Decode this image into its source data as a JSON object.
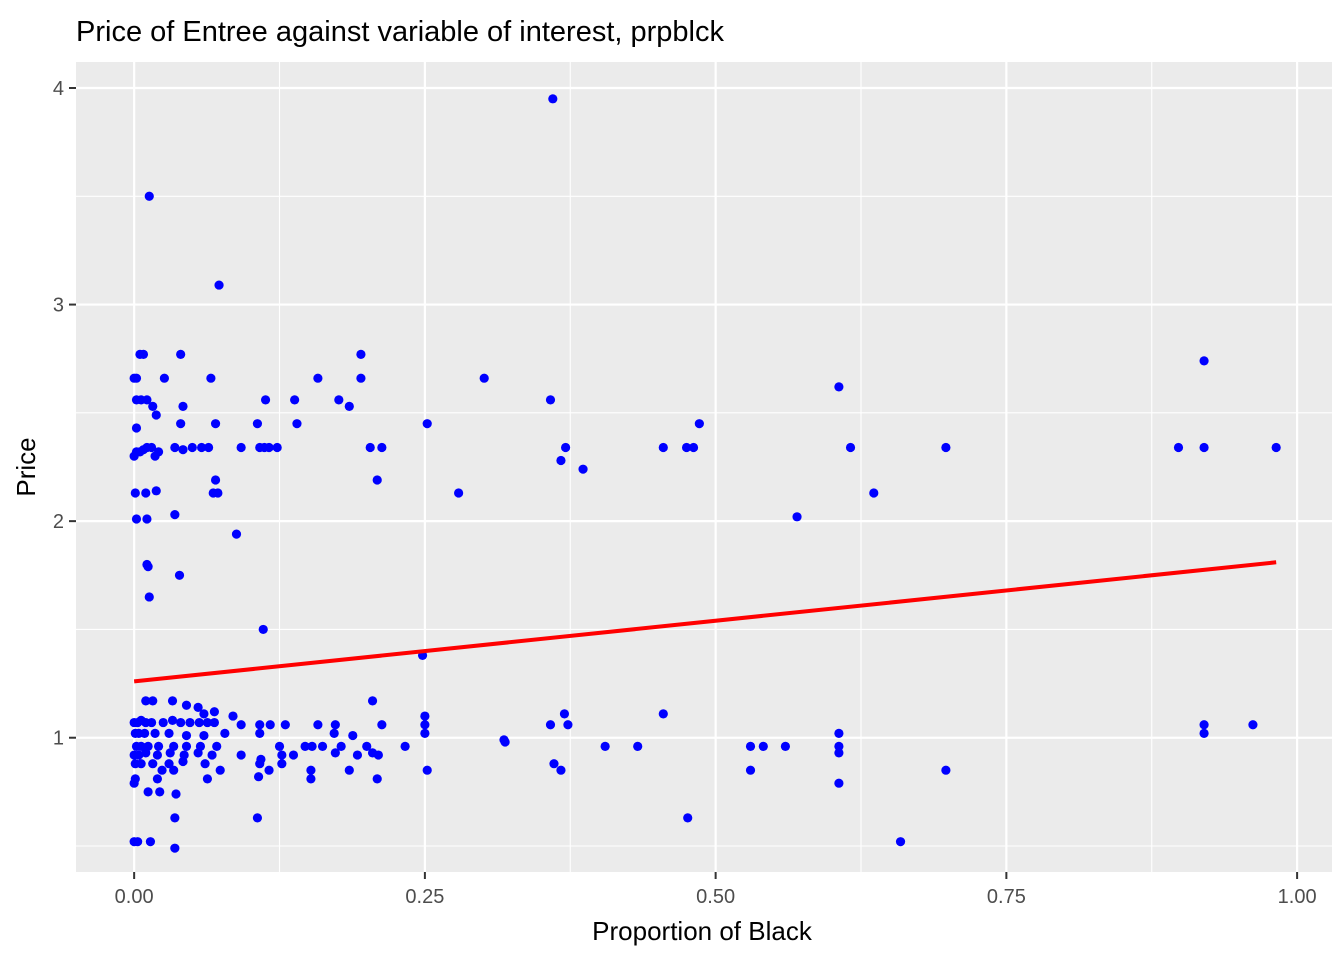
{
  "chart_data": {
    "type": "scatter",
    "title": "Price of Entree against variable of interest, prpblck",
    "xlabel": "Proportion of Black",
    "ylabel": "Price",
    "xlim": [
      -0.05,
      1.03
    ],
    "ylim": [
      0.38,
      4.12
    ],
    "x_ticks": [
      0,
      0.25,
      0.5,
      0.75,
      1.0
    ],
    "x_tick_labels": [
      "0.00",
      "0.25",
      "0.50",
      "0.75",
      "1.00"
    ],
    "y_ticks": [
      1,
      2,
      3,
      4
    ],
    "y_tick_labels": [
      "1",
      "2",
      "3",
      "4"
    ],
    "grid": true,
    "legend": "none",
    "colors": {
      "panel": "#ebebeb",
      "grid": "#ffffff",
      "points": "#0000ff",
      "fit_line": "#ff0000"
    },
    "series": [
      {
        "type": "scatter",
        "points": [
          [
            0.36,
            3.95
          ],
          [
            0.013,
            3.5
          ],
          [
            0.073,
            3.09
          ],
          [
            0.005,
            2.77
          ],
          [
            0.008,
            2.77
          ],
          [
            0.04,
            2.77
          ],
          [
            0.195,
            2.77
          ],
          [
            0.0,
            2.66
          ],
          [
            0.002,
            2.66
          ],
          [
            0.026,
            2.66
          ],
          [
            0.066,
            2.66
          ],
          [
            0.158,
            2.66
          ],
          [
            0.195,
            2.66
          ],
          [
            0.301,
            2.66
          ],
          [
            0.002,
            2.56
          ],
          [
            0.006,
            2.56
          ],
          [
            0.011,
            2.56
          ],
          [
            0.113,
            2.56
          ],
          [
            0.138,
            2.56
          ],
          [
            0.176,
            2.56
          ],
          [
            0.358,
            2.56
          ],
          [
            0.016,
            2.53
          ],
          [
            0.042,
            2.53
          ],
          [
            0.185,
            2.53
          ],
          [
            0.019,
            2.49
          ],
          [
            0.92,
            2.74
          ],
          [
            0.606,
            2.62
          ],
          [
            0.002,
            2.43
          ],
          [
            0.04,
            2.45
          ],
          [
            0.07,
            2.45
          ],
          [
            0.106,
            2.45
          ],
          [
            0.14,
            2.45
          ],
          [
            0.252,
            2.45
          ],
          [
            0.486,
            2.45
          ],
          [
            0.0,
            2.3
          ],
          [
            0.002,
            2.32
          ],
          [
            0.005,
            2.32
          ],
          [
            0.008,
            2.33
          ],
          [
            0.011,
            2.34
          ],
          [
            0.015,
            2.34
          ],
          [
            0.021,
            2.32
          ],
          [
            0.035,
            2.34
          ],
          [
            0.042,
            2.33
          ],
          [
            0.05,
            2.34
          ],
          [
            0.058,
            2.34
          ],
          [
            0.064,
            2.34
          ],
          [
            0.092,
            2.34
          ],
          [
            0.108,
            2.34
          ],
          [
            0.112,
            2.34
          ],
          [
            0.116,
            2.34
          ],
          [
            0.123,
            2.34
          ],
          [
            0.203,
            2.34
          ],
          [
            0.213,
            2.34
          ],
          [
            0.371,
            2.34
          ],
          [
            0.455,
            2.34
          ],
          [
            0.475,
            2.34
          ],
          [
            0.481,
            2.34
          ],
          [
            0.616,
            2.34
          ],
          [
            0.698,
            2.34
          ],
          [
            0.898,
            2.34
          ],
          [
            0.92,
            2.34
          ],
          [
            0.982,
            2.34
          ],
          [
            0.018,
            2.3
          ],
          [
            0.367,
            2.28
          ],
          [
            0.386,
            2.24
          ],
          [
            0.07,
            2.19
          ],
          [
            0.209,
            2.19
          ],
          [
            0.001,
            2.13
          ],
          [
            0.01,
            2.13
          ],
          [
            0.019,
            2.14
          ],
          [
            0.068,
            2.13
          ],
          [
            0.072,
            2.13
          ],
          [
            0.279,
            2.13
          ],
          [
            0.636,
            2.13
          ],
          [
            0.002,
            2.01
          ],
          [
            0.011,
            2.01
          ],
          [
            0.035,
            2.03
          ],
          [
            0.57,
            2.02
          ],
          [
            0.088,
            1.94
          ],
          [
            0.011,
            1.8
          ],
          [
            0.012,
            1.79
          ],
          [
            0.039,
            1.75
          ],
          [
            0.013,
            1.65
          ],
          [
            0.111,
            1.5
          ],
          [
            0.248,
            1.38
          ],
          [
            0.01,
            1.17
          ],
          [
            0.016,
            1.17
          ],
          [
            0.033,
            1.17
          ],
          [
            0.045,
            1.15
          ],
          [
            0.055,
            1.14
          ],
          [
            0.069,
            1.12
          ],
          [
            0.205,
            1.17
          ],
          [
            0.06,
            1.11
          ],
          [
            0.085,
            1.1
          ],
          [
            0.25,
            1.1
          ],
          [
            0.37,
            1.11
          ],
          [
            0.455,
            1.11
          ],
          [
            0.0,
            1.07
          ],
          [
            0.003,
            1.07
          ],
          [
            0.006,
            1.08
          ],
          [
            0.01,
            1.07
          ],
          [
            0.015,
            1.07
          ],
          [
            0.025,
            1.07
          ],
          [
            0.033,
            1.08
          ],
          [
            0.04,
            1.07
          ],
          [
            0.048,
            1.07
          ],
          [
            0.056,
            1.07
          ],
          [
            0.063,
            1.07
          ],
          [
            0.069,
            1.07
          ],
          [
            0.092,
            1.06
          ],
          [
            0.108,
            1.06
          ],
          [
            0.117,
            1.06
          ],
          [
            0.13,
            1.06
          ],
          [
            0.158,
            1.06
          ],
          [
            0.173,
            1.06
          ],
          [
            0.213,
            1.06
          ],
          [
            0.25,
            1.06
          ],
          [
            0.358,
            1.06
          ],
          [
            0.373,
            1.06
          ],
          [
            0.92,
            1.06
          ],
          [
            0.962,
            1.06
          ],
          [
            0.001,
            1.02
          ],
          [
            0.004,
            1.02
          ],
          [
            0.009,
            1.02
          ],
          [
            0.018,
            1.02
          ],
          [
            0.03,
            1.02
          ],
          [
            0.045,
            1.01
          ],
          [
            0.06,
            1.01
          ],
          [
            0.078,
            1.02
          ],
          [
            0.108,
            1.02
          ],
          [
            0.172,
            1.02
          ],
          [
            0.188,
            1.01
          ],
          [
            0.25,
            1.02
          ],
          [
            0.606,
            1.02
          ],
          [
            0.92,
            1.02
          ],
          [
            0.318,
            0.99
          ],
          [
            0.319,
            0.98
          ],
          [
            0.002,
            0.96
          ],
          [
            0.006,
            0.96
          ],
          [
            0.012,
            0.96
          ],
          [
            0.021,
            0.96
          ],
          [
            0.034,
            0.96
          ],
          [
            0.045,
            0.96
          ],
          [
            0.057,
            0.96
          ],
          [
            0.071,
            0.96
          ],
          [
            0.125,
            0.96
          ],
          [
            0.147,
            0.96
          ],
          [
            0.153,
            0.96
          ],
          [
            0.162,
            0.96
          ],
          [
            0.2,
            0.96
          ],
          [
            0.233,
            0.96
          ],
          [
            0.405,
            0.96
          ],
          [
            0.433,
            0.96
          ],
          [
            0.53,
            0.96
          ],
          [
            0.541,
            0.96
          ],
          [
            0.56,
            0.96
          ],
          [
            0.606,
            0.96
          ],
          [
            0.178,
            0.96
          ],
          [
            0.0,
            0.92
          ],
          [
            0.004,
            0.92
          ],
          [
            0.01,
            0.93
          ],
          [
            0.02,
            0.92
          ],
          [
            0.031,
            0.93
          ],
          [
            0.043,
            0.92
          ],
          [
            0.055,
            0.93
          ],
          [
            0.067,
            0.92
          ],
          [
            0.092,
            0.92
          ],
          [
            0.109,
            0.9
          ],
          [
            0.127,
            0.92
          ],
          [
            0.137,
            0.92
          ],
          [
            0.173,
            0.93
          ],
          [
            0.192,
            0.92
          ],
          [
            0.205,
            0.93
          ],
          [
            0.21,
            0.92
          ],
          [
            0.606,
            0.93
          ],
          [
            0.001,
            0.88
          ],
          [
            0.006,
            0.88
          ],
          [
            0.016,
            0.88
          ],
          [
            0.03,
            0.88
          ],
          [
            0.042,
            0.89
          ],
          [
            0.061,
            0.88
          ],
          [
            0.108,
            0.88
          ],
          [
            0.127,
            0.88
          ],
          [
            0.361,
            0.88
          ],
          [
            0.024,
            0.85
          ],
          [
            0.034,
            0.85
          ],
          [
            0.074,
            0.85
          ],
          [
            0.116,
            0.85
          ],
          [
            0.152,
            0.85
          ],
          [
            0.185,
            0.85
          ],
          [
            0.252,
            0.85
          ],
          [
            0.367,
            0.85
          ],
          [
            0.53,
            0.85
          ],
          [
            0.698,
            0.85
          ],
          [
            0.001,
            0.81
          ],
          [
            0.02,
            0.81
          ],
          [
            0.063,
            0.81
          ],
          [
            0.107,
            0.82
          ],
          [
            0.152,
            0.81
          ],
          [
            0.209,
            0.81
          ],
          [
            0.606,
            0.79
          ],
          [
            0.0,
            0.79
          ],
          [
            0.012,
            0.75
          ],
          [
            0.036,
            0.74
          ],
          [
            0.022,
            0.75
          ],
          [
            0.035,
            0.63
          ],
          [
            0.106,
            0.63
          ],
          [
            0.476,
            0.63
          ],
          [
            0.0,
            0.52
          ],
          [
            0.003,
            0.52
          ],
          [
            0.014,
            0.52
          ],
          [
            0.035,
            0.49
          ],
          [
            0.659,
            0.52
          ]
        ]
      },
      {
        "type": "line",
        "points": [
          [
            0.0,
            1.26
          ],
          [
            0.982,
            1.81
          ]
        ]
      }
    ]
  }
}
